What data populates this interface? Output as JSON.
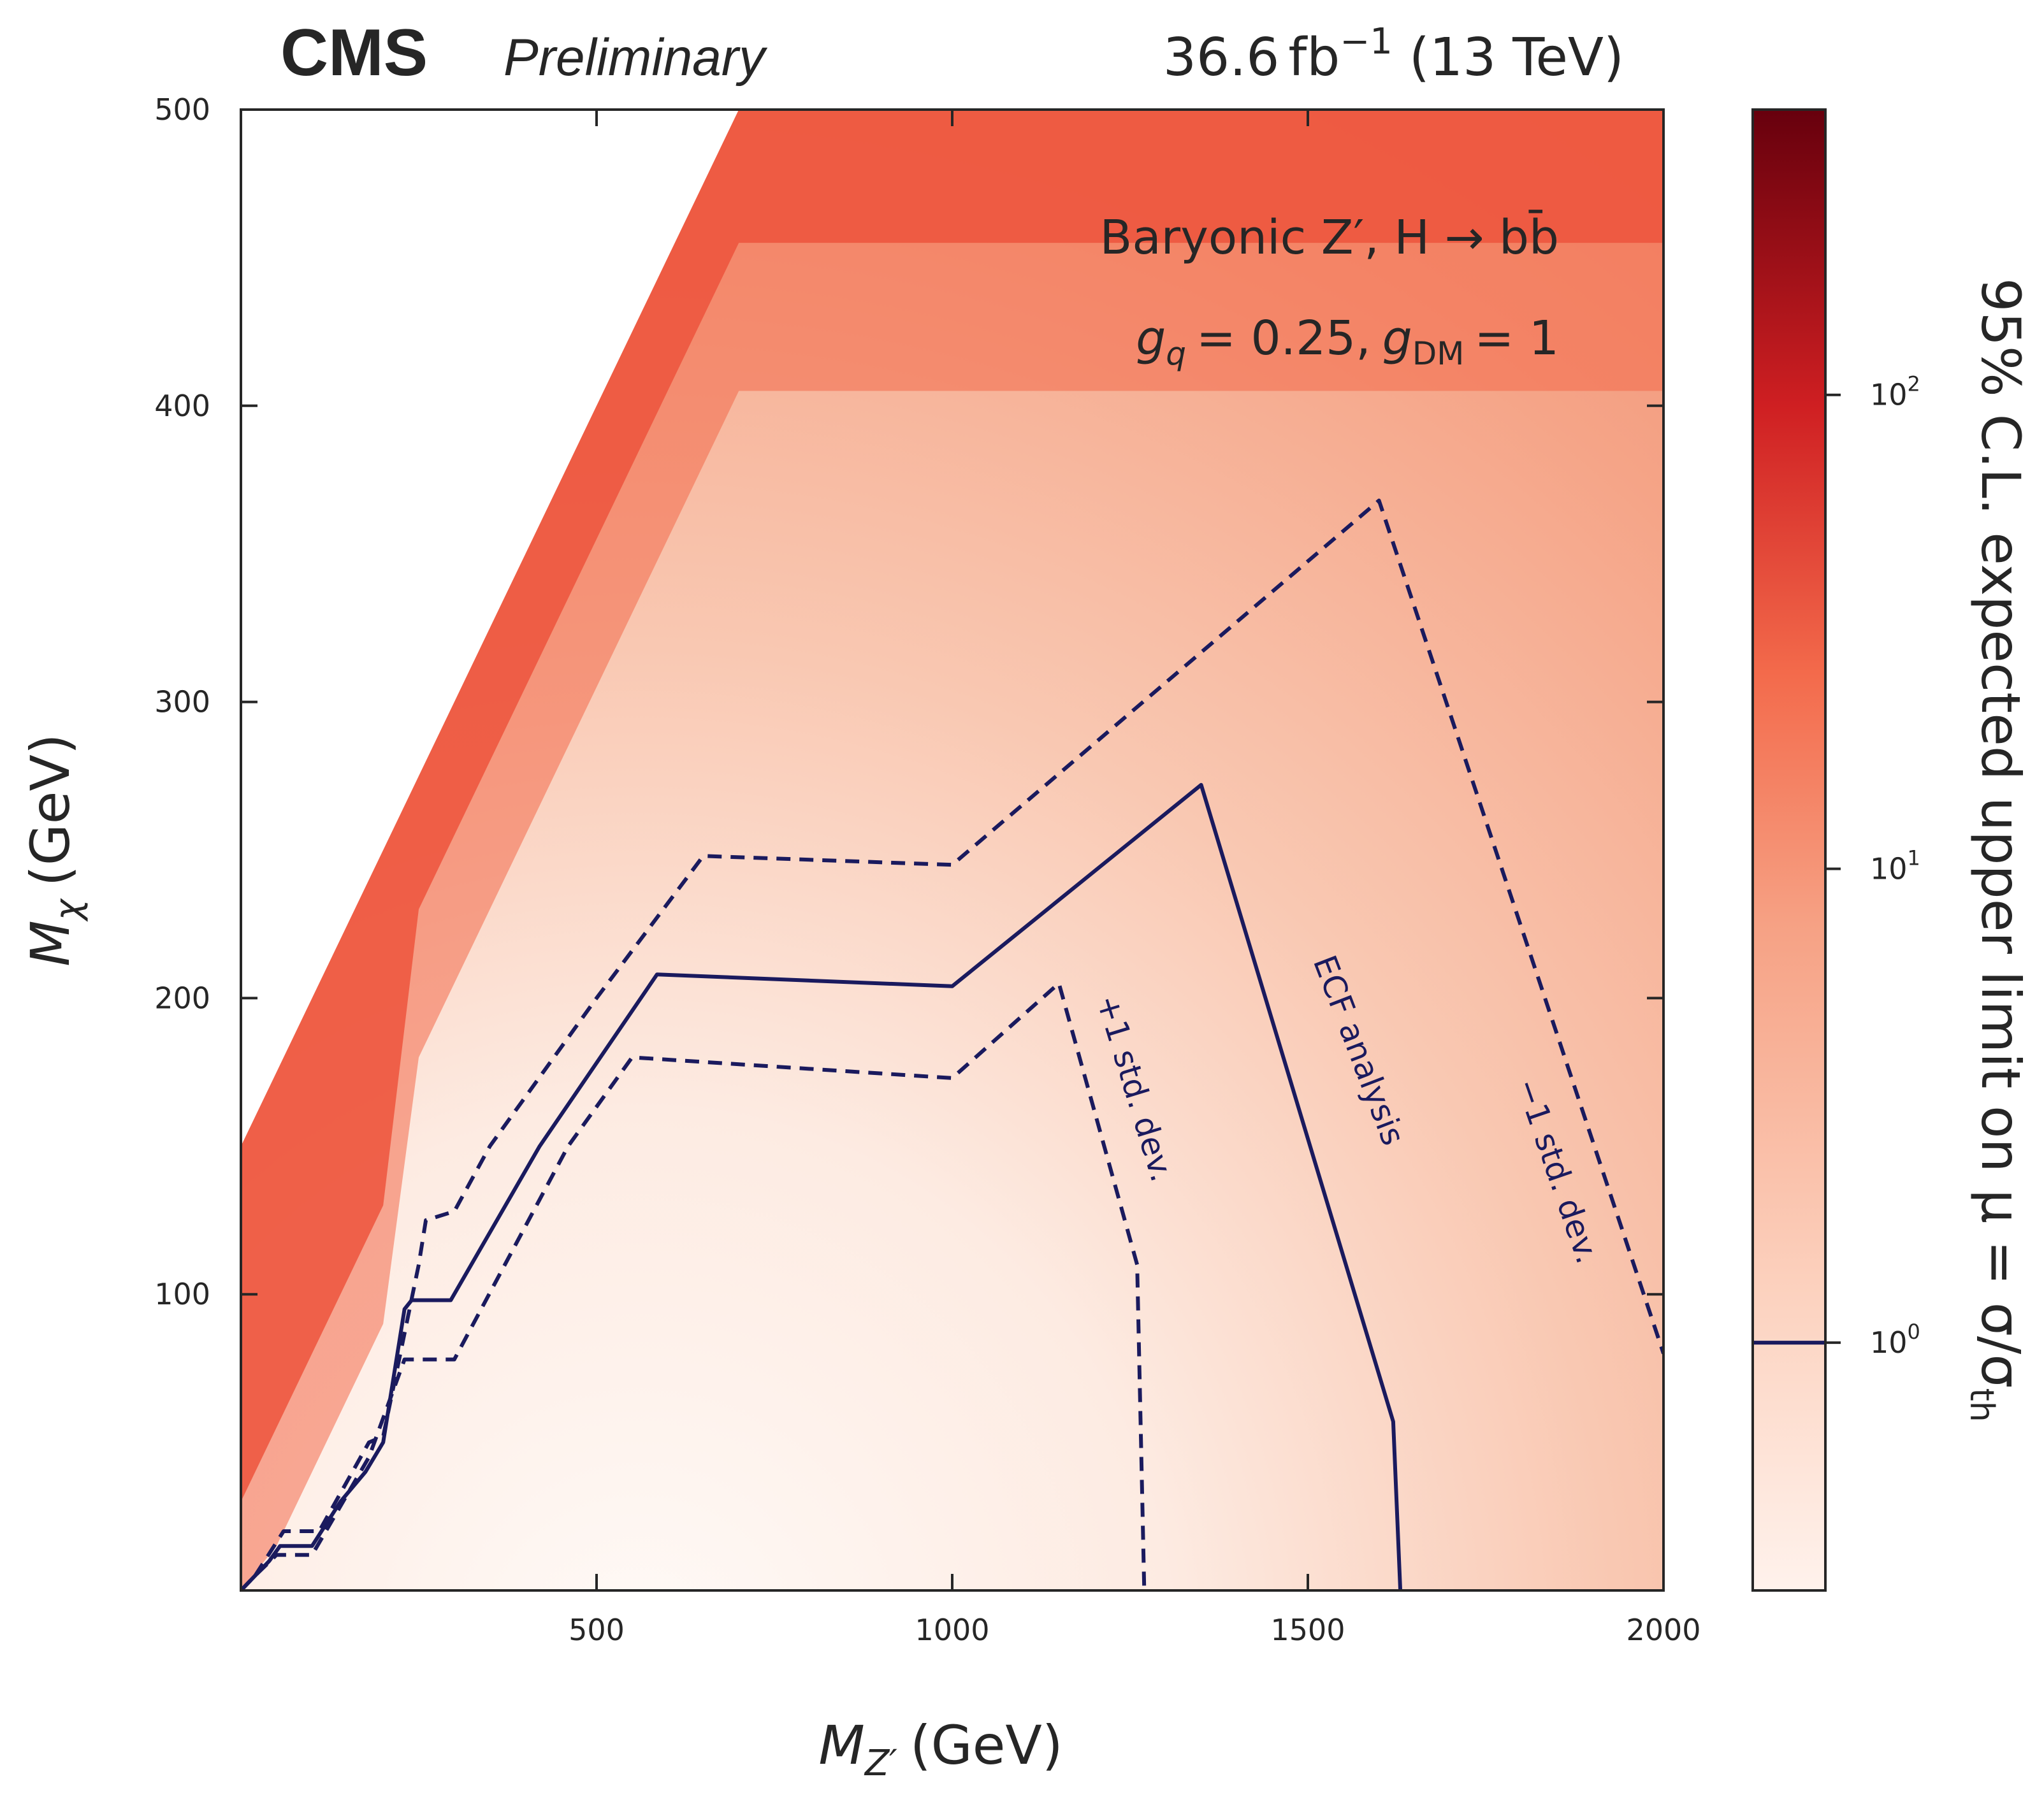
{
  "header": {
    "experiment": "CMS",
    "status": "Preliminary",
    "lumi_value": "36.6",
    "lumi_unit": "fb",
    "lumi_exponent": "−1",
    "energy": "(13 TeV)"
  },
  "annotations": {
    "model_line1": "Baryonic Z′, H → bb̄",
    "couplings": {
      "gq_symbol": "g",
      "gq_sub": "q",
      "gq_value": "= 0.25,",
      "gdm_symbol": "g",
      "gdm_sub": "DM",
      "gdm_value": "= 1"
    }
  },
  "colors": {
    "scale_low": "#fdeee8",
    "scale_mid": "#f4a486",
    "scale_high": "#67000d",
    "contour": "#1a1a5e",
    "frame": "#262626"
  },
  "chart_data": {
    "type": "heatmap",
    "description_free": true,
    "xlabel": {
      "symbol": "M",
      "sub": "Z′",
      "unit": "(GeV)"
    },
    "ylabel": {
      "symbol": "M",
      "sub": "χ",
      "unit": "(GeV)"
    },
    "zlabel": "95% C.L. expected upper limit on μ = σ/σ",
    "zlabel_sub": "th",
    "xlim": [
      0,
      2000
    ],
    "ylim": [
      0,
      500
    ],
    "zscale": "log",
    "zlim": [
      0.3,
      400
    ],
    "x_ticks": [
      500,
      1000,
      1500,
      2000
    ],
    "y_ticks": [
      100,
      200,
      300,
      400,
      500
    ],
    "z_ticks": [
      {
        "value": 1,
        "label": "10",
        "exp": "0"
      },
      {
        "value": 10,
        "label": "10",
        "exp": "1"
      },
      {
        "value": 100,
        "label": "10",
        "exp": "2"
      }
    ],
    "colorbar_marker": 1,
    "valid_region": "M_chi < M_Z'/2 + 150",
    "contours": [
      {
        "name": "ECF analysis",
        "style": "solid",
        "points": [
          [
            0,
            0
          ],
          [
            20,
            5
          ],
          [
            40,
            10
          ],
          [
            55,
            15
          ],
          [
            100,
            15
          ],
          [
            140,
            30
          ],
          [
            175,
            40
          ],
          [
            195,
            48
          ],
          [
            200,
            50
          ],
          [
            230,
            95
          ],
          [
            240,
            98
          ],
          [
            295,
            98
          ],
          [
            420,
            150
          ],
          [
            585,
            208
          ],
          [
            1000,
            204
          ],
          [
            1350,
            272
          ],
          [
            1620,
            57
          ],
          [
            1630,
            0
          ]
        ]
      },
      {
        "name": "+1 std. dev.",
        "style": "dashed",
        "points": [
          [
            0,
            0
          ],
          [
            20,
            5
          ],
          [
            50,
            12
          ],
          [
            80,
            12
          ],
          [
            100,
            12
          ],
          [
            180,
            45
          ],
          [
            230,
            78
          ],
          [
            300,
            78
          ],
          [
            460,
            150
          ],
          [
            550,
            180
          ],
          [
            1000,
            173
          ],
          [
            1150,
            205
          ],
          [
            1260,
            110
          ],
          [
            1270,
            0
          ]
        ]
      },
      {
        "name": "−1 std. dev.",
        "style": "dashed",
        "points": [
          [
            20,
            5
          ],
          [
            60,
            20
          ],
          [
            110,
            20
          ],
          [
            180,
            50
          ],
          [
            200,
            52
          ],
          [
            250,
            110
          ],
          [
            260,
            125
          ],
          [
            300,
            128
          ],
          [
            350,
            150
          ],
          [
            500,
            200
          ],
          [
            650,
            248
          ],
          [
            1000,
            245
          ],
          [
            1600,
            368
          ],
          [
            2000,
            80
          ]
        ]
      }
    ],
    "contour_labels": [
      {
        "text": "ECF analysis",
        "for": "ECF analysis"
      },
      {
        "text": "+1 std. dev.",
        "for": "+1 std. dev."
      },
      {
        "text": "−1 std. dev.",
        "for": "−1 std. dev."
      }
    ]
  }
}
